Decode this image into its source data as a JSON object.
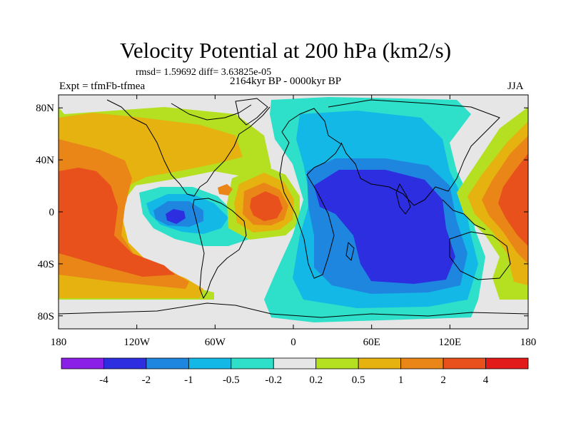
{
  "title": "Velocity Potential at 200 hPa (km2/s)",
  "stats_line": "rmsd= 1.59692 diff= 3.63825e-05",
  "left_label": "Expt = tfmFb-tfmea",
  "center_label": "2164kyr BP - 0000kyr BP",
  "right_label": "JJA",
  "map": {
    "projection": "cylindrical equidistant",
    "lon_range": [
      -180,
      180
    ],
    "lat_range": [
      -90,
      90
    ],
    "lat_ticks": [
      {
        "lat": 80,
        "label": "80N"
      },
      {
        "lat": 40,
        "label": "40N"
      },
      {
        "lat": 0,
        "label": "0"
      },
      {
        "lat": -40,
        "label": "40S"
      },
      {
        "lat": -80,
        "label": "80S"
      }
    ],
    "lon_ticks": [
      {
        "lon": -180,
        "label": "180"
      },
      {
        "lon": -120,
        "label": "120W"
      },
      {
        "lon": -60,
        "label": "60W"
      },
      {
        "lon": 0,
        "label": "0"
      },
      {
        "lon": 60,
        "label": "60E"
      },
      {
        "lon": 120,
        "label": "120E"
      },
      {
        "lon": 180,
        "label": "180"
      }
    ],
    "background_color": "#e6e6e6",
    "coastline_color": "#000000"
  },
  "colorbar": {
    "colors": [
      "#8b1fe8",
      "#2d2ee0",
      "#1f86e0",
      "#13b8e6",
      "#2ee0c9",
      "#e6e6e6",
      "#b4e021",
      "#e5b20f",
      "#ea8517",
      "#e8511b",
      "#e31a1a"
    ],
    "labels": [
      "-4",
      "-2",
      "-1",
      "-0.5",
      "-0.2",
      "0.2",
      "0.5",
      "1",
      "2",
      "4"
    ]
  },
  "field_regions": [
    {
      "name": "neutral-west-pacific",
      "level": "neutral",
      "color": "#e6e6e6"
    },
    {
      "name": "north-pacific-light-positive",
      "level": "0.2 to 0.5",
      "color": "#b4e021"
    },
    {
      "name": "pacific-positive-0.5-1",
      "level": "0.5 to 1",
      "color": "#e5b20f"
    },
    {
      "name": "pacific-positive-1-2",
      "level": "1 to 2",
      "color": "#ea8517"
    },
    {
      "name": "pacific-positive-2-4",
      "level": "2 to 4",
      "color": "#e8511b"
    },
    {
      "name": "east-pacific-negative-light",
      "level": "-0.5 to -0.2",
      "color": "#2ee0c9"
    },
    {
      "name": "east-pacific-negative-medium",
      "level": "-1 to -0.5",
      "color": "#13b8e6"
    },
    {
      "name": "east-pacific-negative-strong",
      "level": "-2 to -1",
      "color": "#1f86e0"
    },
    {
      "name": "east-pacific-negative-core",
      "level": "-4 to -2",
      "color": "#2d2ee0"
    },
    {
      "name": "atlantic-positive-light",
      "level": "0.2 to 0.5",
      "color": "#b4e021"
    },
    {
      "name": "atlantic-positive-0.5-1",
      "level": "0.5 to 1",
      "color": "#e5b20f"
    },
    {
      "name": "atlantic-positive-1-2",
      "level": "1 to 2",
      "color": "#ea8517"
    },
    {
      "name": "atlantic-positive-2-4",
      "level": "2 to 4",
      "color": "#e8511b"
    },
    {
      "name": "gulf-positive-spot",
      "level": "1 to 2",
      "color": "#ea8517"
    },
    {
      "name": "eurasia-negative-light",
      "level": "-0.5 to -0.2",
      "color": "#2ee0c9"
    },
    {
      "name": "africa-indian-negative-medium",
      "level": "-1 to -0.5",
      "color": "#13b8e6"
    },
    {
      "name": "africa-indian-negative-strong",
      "level": "-2 to -1",
      "color": "#1f86e0"
    },
    {
      "name": "africa-indian-negative-core",
      "level": "-4 to -2",
      "color": "#2d2ee0"
    },
    {
      "name": "west-pacific-positive-light",
      "level": "0.2 to 0.5",
      "color": "#b4e021"
    },
    {
      "name": "west-pacific-positive-0.5-1",
      "level": "0.5 to 1",
      "color": "#e5b20f"
    },
    {
      "name": "west-pacific-positive-1-2",
      "level": "1 to 2",
      "color": "#ea8517"
    },
    {
      "name": "west-pacific-positive-2-4",
      "level": "2 to 4",
      "color": "#e8511b"
    }
  ]
}
